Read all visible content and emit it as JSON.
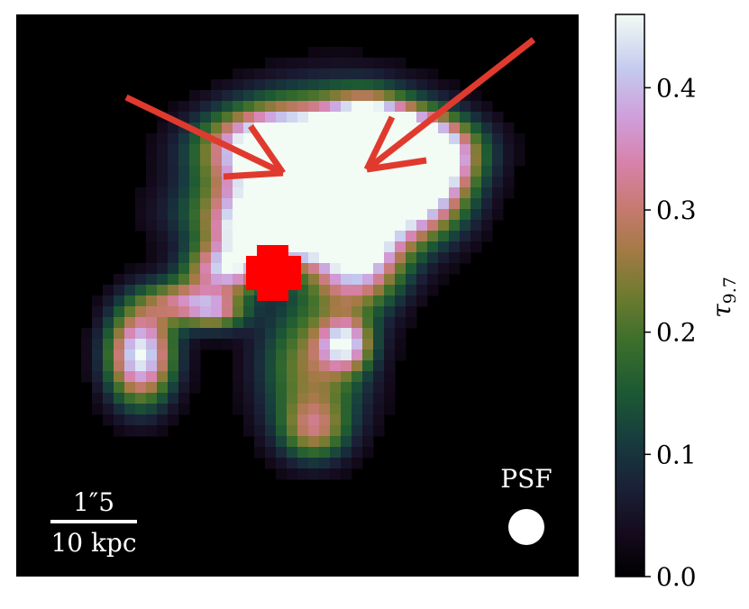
{
  "image": {
    "scale_bar": {
      "angular_label": "1″5",
      "physical_label": "10 kpc"
    },
    "psf_label": "PSF"
  },
  "colorbar": {
    "label": "τ9.7",
    "label_main": "τ",
    "label_sub": "9.7",
    "ticks": [
      {
        "value": 0.0,
        "label": "0.0"
      },
      {
        "value": 0.1,
        "label": "0.1"
      },
      {
        "value": 0.2,
        "label": "0.2"
      },
      {
        "value": 0.3,
        "label": "0.3"
      },
      {
        "value": 0.4,
        "label": "0.4"
      }
    ],
    "range": [
      0.0,
      0.46
    ],
    "colormap": "cubehelix"
  },
  "colors": {
    "background": "#000000",
    "arrows": "#e03a2e",
    "nucleus_mask": "#ff0000",
    "annotation_text": "#ffffff"
  }
}
